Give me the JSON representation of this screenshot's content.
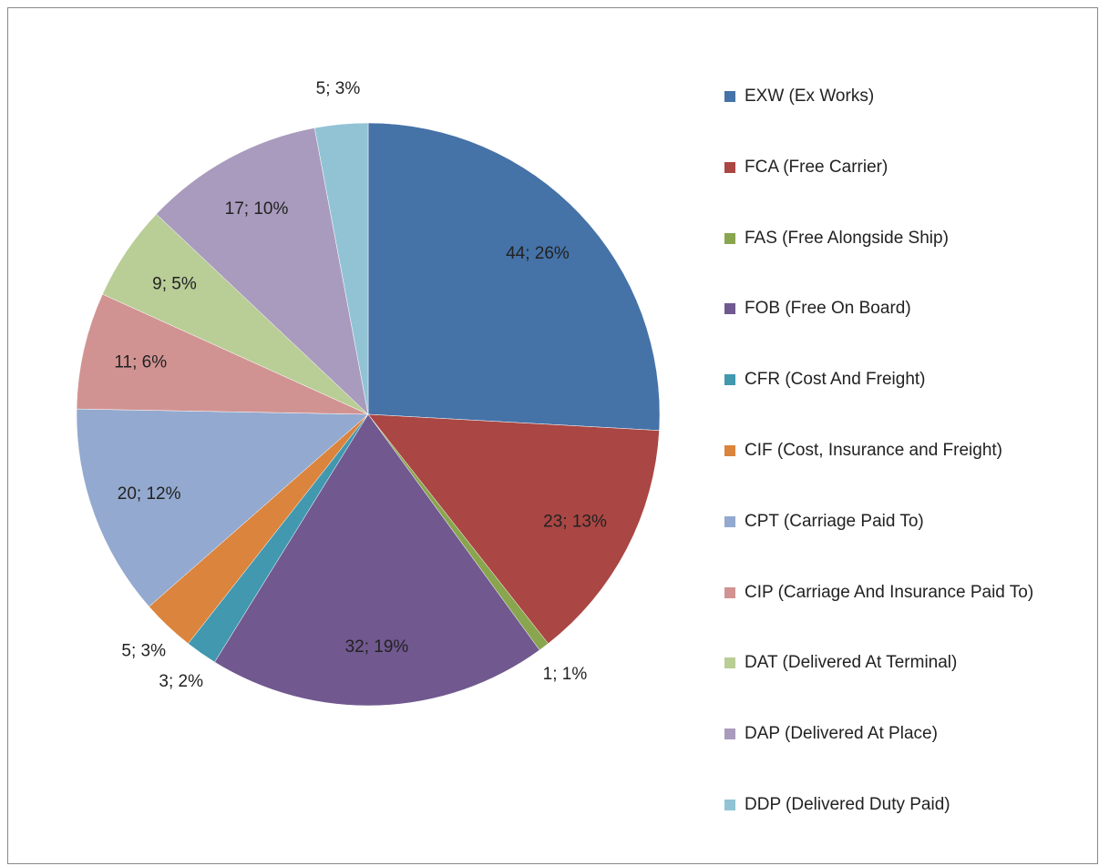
{
  "chart_data": {
    "type": "pie",
    "categories": [
      "EXW (Ex Works)",
      "FCA (Free Carrier)",
      "FAS (Free Alongside Ship)",
      "FOB (Free On Board)",
      "CFR (Cost And Freight)",
      "CIF (Cost, Insurance and Freight)",
      "CPT (Carriage Paid To)",
      "CIP (Carriage And Insurance Paid To)",
      "DAT (Delivered At Terminal)",
      "DAP (Delivered At Place)",
      "DDP (Delivered Duty Paid)"
    ],
    "values": [
      44,
      23,
      1,
      32,
      3,
      5,
      20,
      11,
      9,
      17,
      5
    ],
    "value_labels": [
      "44; 26%",
      "23; 13%",
      "1; 1%",
      "32; 19%",
      "3; 2%",
      "5; 3%",
      "20; 12%",
      "11; 6%",
      "9; 5%",
      "17; 10%",
      "5; 3%"
    ],
    "colors": [
      "#4572a7",
      "#aa4643",
      "#89a54e",
      "#71588f",
      "#4198af",
      "#db843d",
      "#93a9cf",
      "#d19392",
      "#b9cd96",
      "#a99bbd",
      "#92c3d5"
    ],
    "legend": "right"
  }
}
